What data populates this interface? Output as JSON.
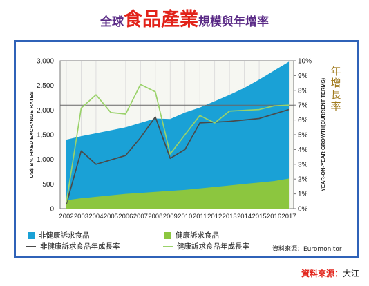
{
  "header": {
    "title_prefix": "全球",
    "title_emphasis": "食品產業",
    "title_suffix": "規模與年增率"
  },
  "chart_data": {
    "type": "area",
    "categories": [
      "2002",
      "2003",
      "2004",
      "2005",
      "2006",
      "2007",
      "2008",
      "2009",
      "2010",
      "2011",
      "2012",
      "2013",
      "2014",
      "2015",
      "2016",
      "2017"
    ],
    "ylabel": "US$ BN. FIXED EXCHANGE RATES",
    "ylim": [
      0,
      3000
    ],
    "yticks": [
      "0",
      "500",
      "1,000",
      "1,500",
      "2,000",
      "2,500",
      "3,000"
    ],
    "y2label": "YEAR-ON-YEAR GROWTH(CURRENT TERMS)",
    "y2label_cn": "年增長率",
    "y2lim": [
      0,
      10
    ],
    "y2ticks": [
      "0%",
      "1%",
      "2%",
      "3%",
      "4%",
      "5%",
      "6%",
      "7%",
      "8%",
      "9%",
      "10%"
    ],
    "reference_lines_y2": [
      7
    ],
    "series": [
      {
        "name": "非健康訴求食品",
        "kind": "area",
        "axis": "left",
        "color": "#1aa1d6",
        "values": [
          1400,
          1470,
          1530,
          1590,
          1650,
          1740,
          1830,
          1820,
          1950,
          2050,
          2180,
          2310,
          2450,
          2620,
          2800,
          2980
        ]
      },
      {
        "name": "健康訴求食品",
        "kind": "area",
        "axis": "left",
        "color": "#8cc63f",
        "values": [
          170,
          210,
          240,
          270,
          300,
          320,
          340,
          360,
          380,
          410,
          440,
          470,
          500,
          530,
          560,
          610
        ]
      },
      {
        "name": "非健康訴求食品年成長率",
        "kind": "line",
        "axis": "right",
        "color": "#4a4a4a",
        "values": [
          0.3,
          3.9,
          3.0,
          3.3,
          3.6,
          4.8,
          6.2,
          3.4,
          4.0,
          5.8,
          5.85,
          5.9,
          6.0,
          6.1,
          6.4,
          6.7
        ]
      },
      {
        "name": "健康訴求食品年成長率",
        "kind": "line",
        "axis": "right",
        "color": "#9ad26a",
        "values": [
          0.4,
          6.8,
          7.7,
          6.5,
          6.4,
          8.4,
          7.9,
          3.7,
          5.0,
          6.3,
          5.8,
          6.6,
          6.65,
          6.7,
          6.95,
          7.0
        ]
      }
    ]
  },
  "legend": {
    "items": [
      {
        "label": "非健康訴求食品",
        "kind": "box",
        "color": "#1aa1d6"
      },
      {
        "label": "健康訴求食品",
        "kind": "box",
        "color": "#8cc63f"
      },
      {
        "label": "非健康訴求食品年成長率",
        "kind": "line",
        "color": "#4a4a4a"
      },
      {
        "label": "健康訴求食品年成長率",
        "kind": "line",
        "color": "#9ad26a"
      }
    ],
    "source_inner": "資料來源：Euromonitor"
  },
  "source_outer": {
    "label": "資料來源：",
    "name": "大江"
  }
}
